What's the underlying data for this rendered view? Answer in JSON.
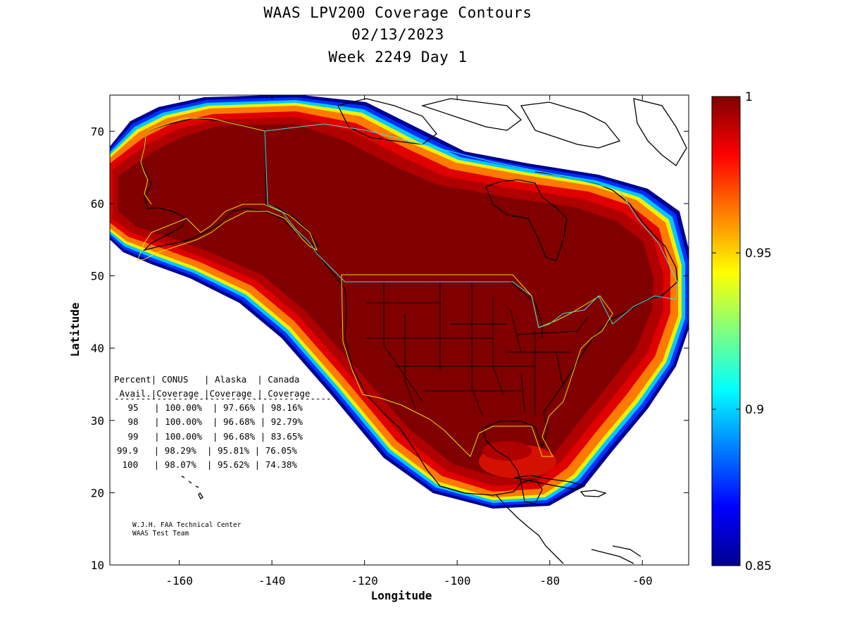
{
  "title": {
    "line1": "WAAS LPV200 Coverage Contours",
    "line2": "02/13/2023",
    "line3": "Week 2249 Day 1"
  },
  "axes": {
    "xlabel": "Longitude",
    "ylabel": "Latitude",
    "xlim": [
      -175,
      -50
    ],
    "ylim": [
      10,
      75
    ],
    "xticks": [
      "-160",
      "-140",
      "-120",
      "-100",
      "-80",
      "-60"
    ],
    "xtick_values": [
      -160,
      -140,
      -120,
      -100,
      -80,
      -60
    ],
    "yticks": [
      "10",
      "20",
      "30",
      "40",
      "50",
      "60",
      "70"
    ],
    "ytick_values": [
      10,
      20,
      30,
      40,
      50,
      60,
      70
    ]
  },
  "colorbar": {
    "min": 0.85,
    "max": 1,
    "ticks": [
      "0.85",
      "0.9",
      "0.95",
      "1"
    ],
    "tick_values": [
      0.85,
      0.9,
      0.95,
      1.0
    ],
    "colormap": "jet"
  },
  "coverage_table": {
    "header1": "Percent| CONUS   | Alaska  | Canada",
    "header2": " Avail.|Coverage |Coverage | Coverage",
    "separator": "-----------------------------------------",
    "rows": [
      " 95   | 100.00%  | 97.66% | 98.16%",
      " 98   | 100.00%  | 96.68% | 92.79%",
      " 99   | 100.00%  | 96.68% | 83.65%",
      "99.9   | 98.29%  | 95.81% | 76.05%",
      " 100   | 98.07%  | 95.62% | 74.38%"
    ]
  },
  "credit": {
    "line1": "W.J.H. FAA Technical Center",
    "line2": "WAAS Test Team"
  },
  "colors": {
    "max_coverage": "#7f0000",
    "red": "#d40000",
    "orange": "#ff6600",
    "yellow": "#ffee00",
    "cyan": "#00ccff",
    "blue": "#0022dd",
    "navy": "#00008f",
    "service_boundary": "#e8e000",
    "canada_boundary": "#40e0e0"
  }
}
